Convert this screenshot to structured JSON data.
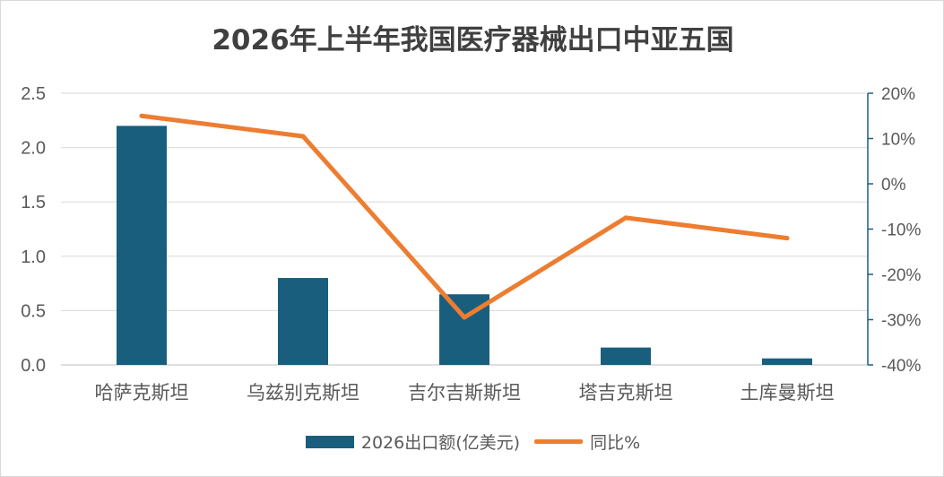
{
  "chart_data": {
    "type": "bar",
    "title": "2026年上半年我国医疗器械出口中亚五国",
    "categories": [
      "哈萨克斯坦",
      "乌兹别克斯坦",
      "吉尔吉斯斯坦",
      "塔吉克斯坦",
      "土库曼斯坦"
    ],
    "series": [
      {
        "name": "2026出口额(亿美元)",
        "type": "bar",
        "axis": "left",
        "color": "#1a5e7e",
        "values": [
          2.2,
          0.8,
          0.65,
          0.16,
          0.06
        ]
      },
      {
        "name": "同比%",
        "type": "line",
        "axis": "right",
        "color": "#ed7d31",
        "values": [
          15,
          10.5,
          -29.5,
          -7.5,
          -12
        ]
      }
    ],
    "y_left": {
      "ylim": [
        0,
        2.5
      ],
      "ticks": [
        "0.0",
        "0.5",
        "1.0",
        "1.5",
        "2.0",
        "2.5"
      ]
    },
    "y_right": {
      "ylim": [
        -40,
        20
      ],
      "ticks": [
        "-40%",
        "-30%",
        "-20%",
        "-10%",
        "0%",
        "10%",
        "20%"
      ]
    },
    "grid": true,
    "legend_position": "bottom"
  }
}
